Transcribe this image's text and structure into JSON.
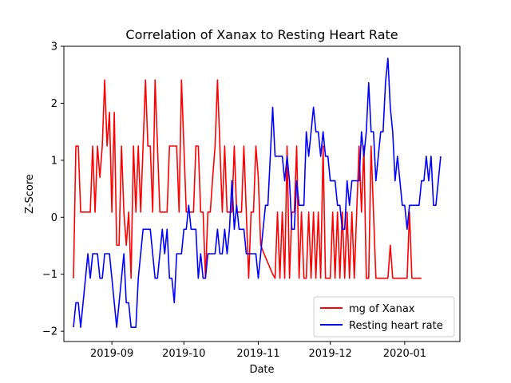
{
  "chart_data": {
    "type": "line",
    "title": "Correlation of Xanax to Resting Heart Rate",
    "xlabel": "Date",
    "ylabel": "Z-Score",
    "x_start": "2019-08-16",
    "x_step": "1 day",
    "xlim": [
      "2019-08-12",
      "2020-01-24"
    ],
    "ylim": [
      -2.18,
      3.0
    ],
    "yticks": [
      -2,
      -1,
      0,
      1,
      2,
      3
    ],
    "xticks": [
      "2019-09",
      "2019-10",
      "2019-11",
      "2019-12",
      "2020-01"
    ],
    "grid": false,
    "legend_position": "lower right",
    "series": [
      {
        "name": "mg of Xanax",
        "color": "#ff0000",
        "values": [
          -1.07,
          1.25,
          1.25,
          0.09,
          0.09,
          0.09,
          0.09,
          0.09,
          1.25,
          0.09,
          1.25,
          0.7,
          1.25,
          2.41,
          1.25,
          1.84,
          0.09,
          1.84,
          -0.49,
          -0.49,
          1.25,
          0.09,
          -0.49,
          0.09,
          -1.07,
          1.25,
          0.09,
          1.25,
          0.09,
          1.25,
          2.41,
          1.25,
          1.25,
          0.09,
          2.41,
          1.25,
          0.09,
          0.09,
          0.09,
          0.09,
          1.25,
          1.25,
          1.25,
          1.25,
          0.09,
          2.41,
          1.25,
          0.09,
          0.09,
          0.09,
          0.09,
          1.25,
          1.25,
          0.09,
          0.09,
          -1.07,
          0.09,
          0.09,
          0.7,
          1.25,
          2.41,
          1.25,
          0.09,
          1.25,
          0.09,
          0.09,
          0.09,
          1.25,
          0.09,
          0.09,
          0.09,
          1.25,
          0.09,
          -1.07,
          0.09,
          0.09,
          1.25,
          0.7,
          -0.49,
          -0.6,
          -0.7,
          -0.8,
          -0.9,
          -1.0,
          -1.07,
          0.09,
          -1.07,
          0.09,
          -1.07,
          1.25,
          -1.07,
          0.09,
          0.09,
          1.25,
          -1.07,
          0.09,
          -1.07,
          -1.07,
          0.09,
          -1.07,
          0.09,
          -1.07,
          0.09,
          -1.07,
          1.25,
          -1.07,
          -1.07,
          -1.07,
          0.09,
          -1.07,
          0.09,
          -1.07,
          0.09,
          -1.07,
          0.09,
          -1.07,
          0.09,
          -1.07,
          0.09,
          1.25,
          0.09,
          1.25,
          -1.07,
          -1.07,
          1.25,
          0.09,
          -1.07,
          -1.07,
          -1.07,
          -1.07,
          -1.07,
          -1.07,
          -0.49,
          -1.07,
          -1.07,
          -1.07,
          -1.07,
          -1.07,
          -1.07,
          -1.07,
          0.09,
          -1.07,
          -1.07,
          -1.07,
          -1.07,
          -1.07
        ]
      },
      {
        "name": "Resting heart rate",
        "color": "#0000ff",
        "values": [
          -1.93,
          -1.5,
          -1.5,
          -1.93,
          -1.5,
          -1.07,
          -0.64,
          -1.07,
          -0.64,
          -0.64,
          -0.64,
          -1.07,
          -1.07,
          -0.64,
          -0.64,
          -0.64,
          -1.07,
          -1.5,
          -1.93,
          -1.5,
          -1.07,
          -0.64,
          -1.5,
          -1.5,
          -1.93,
          -1.93,
          -1.93,
          -1.07,
          -0.64,
          -0.21,
          -0.21,
          -0.21,
          -0.21,
          -0.64,
          -1.07,
          -1.07,
          -0.64,
          -0.21,
          -0.64,
          -0.21,
          -1.07,
          -1.07,
          -1.5,
          -0.64,
          -0.64,
          -0.64,
          -0.21,
          -0.21,
          0.21,
          -0.21,
          -0.21,
          -0.21,
          -1.07,
          -0.64,
          -1.07,
          -1.07,
          -0.64,
          -0.64,
          -0.64,
          -0.64,
          -0.21,
          -0.64,
          -0.64,
          -0.21,
          -0.64,
          -0.21,
          0.64,
          -0.21,
          0.21,
          -0.21,
          -0.21,
          -0.21,
          -0.64,
          -0.64,
          -0.64,
          -0.64,
          -0.64,
          -1.07,
          -0.64,
          -0.21,
          0.21,
          0.21,
          1.07,
          1.93,
          1.07,
          1.07,
          1.07,
          1.07,
          0.64,
          1.07,
          0.64,
          -0.21,
          -0.21,
          0.64,
          0.21,
          0.21,
          0.21,
          1.5,
          1.07,
          1.5,
          1.93,
          1.5,
          1.5,
          1.07,
          1.5,
          1.07,
          1.07,
          0.64,
          0.64,
          0.64,
          0.21,
          0.21,
          -0.21,
          -0.21,
          0.64,
          0.21,
          0.64,
          0.64,
          0.64,
          0.64,
          1.5,
          1.07,
          1.5,
          2.36,
          1.5,
          1.5,
          0.64,
          1.07,
          1.5,
          1.5,
          2.36,
          2.79,
          1.93,
          1.5,
          0.64,
          1.07,
          0.64,
          0.21,
          0.21,
          -0.21,
          0.21,
          0.21,
          0.21,
          0.21,
          0.21,
          0.64,
          0.64,
          1.07,
          0.64,
          1.07,
          0.21,
          0.21,
          0.64,
          1.07
        ]
      }
    ]
  }
}
